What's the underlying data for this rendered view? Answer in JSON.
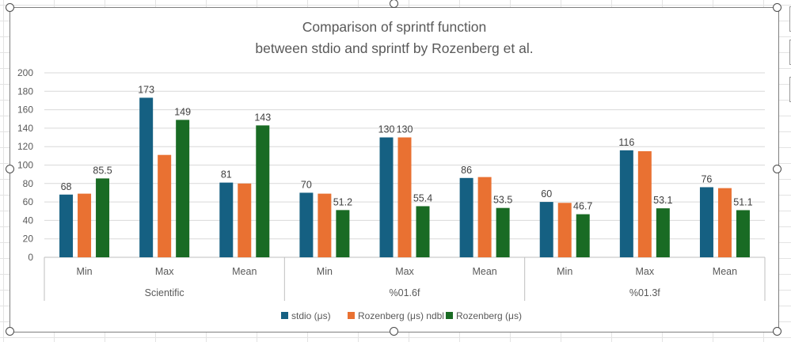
{
  "chart_data": {
    "type": "bar",
    "title_lines": [
      "Comparison of sprintf function",
      "between stdio and sprintf by Rozenberg et al."
    ],
    "ylim": [
      0,
      200
    ],
    "yticks": [
      0,
      20,
      40,
      60,
      80,
      100,
      120,
      140,
      160,
      180,
      200
    ],
    "groups": [
      {
        "label": "Scientific",
        "categories": [
          "Min",
          "Max",
          "Mean"
        ]
      },
      {
        "label": "%01.6f",
        "categories": [
          "Min",
          "Max",
          "Mean"
        ]
      },
      {
        "label": "%01.3f",
        "categories": [
          "Min",
          "Max",
          "Mean"
        ]
      }
    ],
    "series": [
      {
        "name": "stdio (μs)",
        "color": "#156082",
        "values": [
          68,
          173,
          81,
          70,
          130,
          86,
          60,
          116,
          76
        ],
        "labels": [
          "68",
          "173",
          "81",
          "70",
          "130",
          "86",
          "60",
          "116",
          "76"
        ]
      },
      {
        "name": "Rozenberg (μs) ndbl",
        "color": "#E97132",
        "values": [
          69,
          111,
          80,
          69,
          130,
          87,
          59,
          115,
          75
        ],
        "labels": [
          "",
          "",
          "",
          "",
          "130",
          "",
          "",
          "",
          ""
        ]
      },
      {
        "name": "Rozenberg (μs)",
        "color": "#196B24",
        "values": [
          85.5,
          149,
          143,
          51.2,
          55.4,
          53.5,
          46.7,
          53.1,
          51.1
        ],
        "labels": [
          "85.5",
          "149",
          "143",
          "51.2",
          "55.4",
          "53.5",
          "46.7",
          "53.1",
          "51.1"
        ]
      }
    ],
    "legend_position": "bottom",
    "gridlines": true
  }
}
